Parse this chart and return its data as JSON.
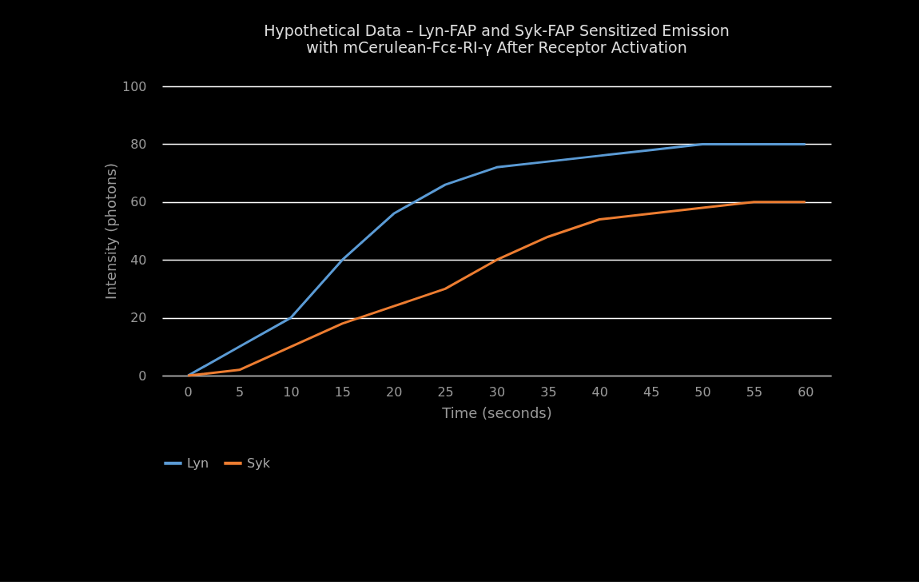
{
  "chart_data": {
    "type": "line",
    "title": [
      "Hypothetical Data – Lyn-FAP and Syk-FAP Sensitized Emission",
      "with mCerulean-Fcε-RI-γ After Receptor Activation"
    ],
    "xlabel": "Time (seconds)",
    "ylabel": "Intensity (photons)",
    "categories": [
      "0",
      "5",
      "10",
      "15",
      "20",
      "25",
      "30",
      "35",
      "40",
      "45",
      "50",
      "55",
      "60"
    ],
    "series": [
      {
        "name": "Lyn",
        "color": "#5b9bd5",
        "values": [
          0,
          10,
          20,
          40,
          56,
          66,
          72,
          74,
          76,
          78,
          80,
          80,
          80
        ]
      },
      {
        "name": "Syk",
        "color": "#ed7d31",
        "values": [
          0,
          2,
          10,
          18,
          24,
          30,
          40,
          48,
          54,
          56,
          58,
          60,
          60
        ]
      }
    ],
    "ylim": [
      0,
      100
    ],
    "yticks": [
      0,
      20,
      40,
      60,
      80,
      100
    ],
    "grid": "y",
    "legend": "bottom",
    "marker": "none",
    "line_style": "solid"
  }
}
